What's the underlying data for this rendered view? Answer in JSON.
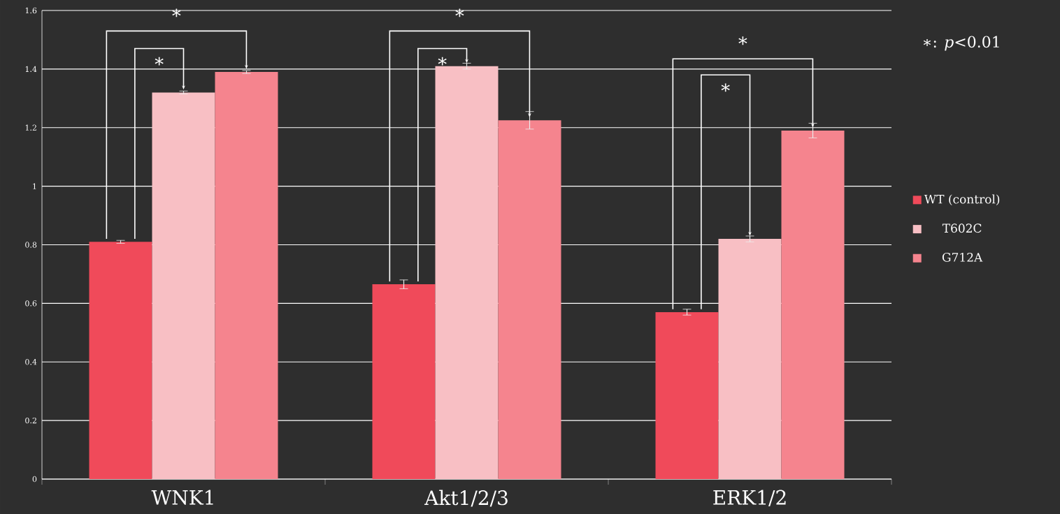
{
  "chart_data": {
    "type": "bar",
    "categories": [
      "WNK1",
      "Akt1/2/3",
      "ERK1/2"
    ],
    "series": [
      {
        "name": "WT (control)",
        "color": "#f04a5a",
        "values": [
          0.81,
          0.665,
          0.57
        ],
        "errors": [
          0.005,
          0.015,
          0.01
        ]
      },
      {
        "name": "T602C",
        "color": "#f8bfc4",
        "values": [
          1.32,
          1.41,
          0.82
        ],
        "errors": [
          0.005,
          0.01,
          0.01
        ]
      },
      {
        "name": "G712A",
        "color": "#f5848e",
        "values": [
          1.39,
          1.225,
          1.19
        ],
        "errors": [
          0.005,
          0.03,
          0.025
        ]
      }
    ],
    "ylim": [
      0,
      1.6
    ],
    "yticks": [
      0,
      0.2,
      0.4,
      0.6,
      0.8,
      1,
      1.2,
      1.4,
      1.6
    ],
    "grid": "y",
    "legend": "right",
    "annotations": [
      "*",
      "*",
      "*",
      "*",
      "*",
      "*",
      "∗: *p*<0.01"
    ]
  }
}
